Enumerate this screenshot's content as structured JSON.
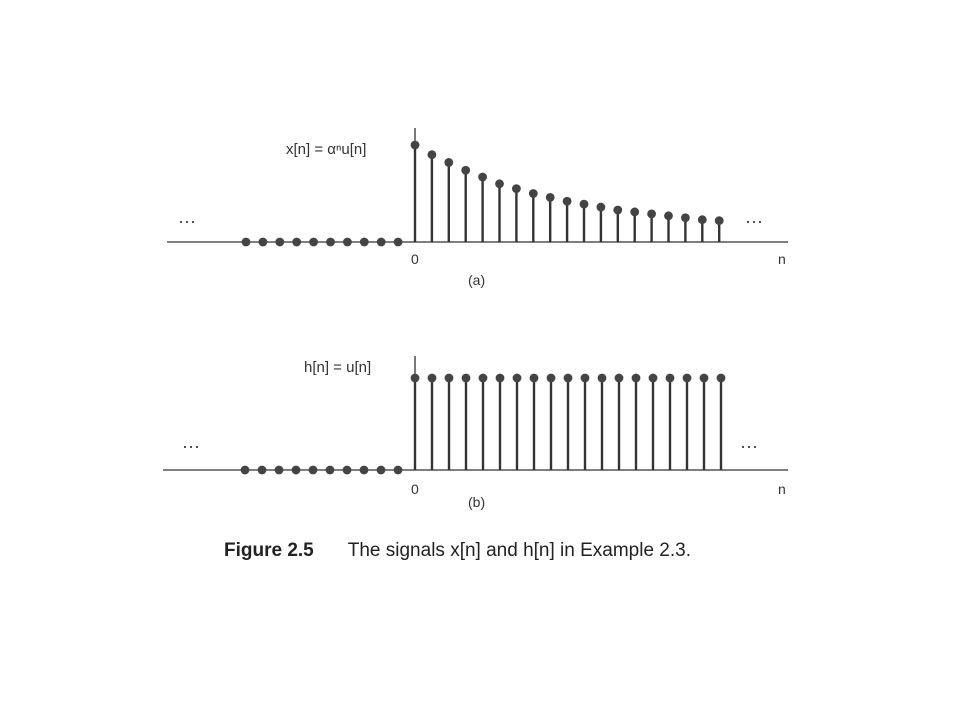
{
  "caption": {
    "label": "Figure 2.5",
    "text": "The signals x[n] and h[n] in Example 2.3."
  },
  "chart_data": [
    {
      "type": "stem",
      "panel_label": "(a)",
      "formula": "x[n] = αⁿu[n]",
      "xlabel": "n",
      "x_tick": "0",
      "continuation": "···",
      "x": [
        -10,
        -9,
        -8,
        -7,
        -6,
        -5,
        -4,
        -3,
        -2,
        -1,
        0,
        1,
        2,
        3,
        4,
        5,
        6,
        7,
        8,
        9,
        10,
        11,
        12,
        13,
        14,
        15,
        16,
        17,
        18
      ],
      "values": [
        0,
        0,
        0,
        0,
        0,
        0,
        0,
        0,
        0,
        0,
        1.0,
        0.9,
        0.82,
        0.74,
        0.67,
        0.6,
        0.55,
        0.5,
        0.46,
        0.42,
        0.39,
        0.36,
        0.33,
        0.31,
        0.29,
        0.27,
        0.25,
        0.23,
        0.22
      ],
      "ylim": [
        0,
        1
      ]
    },
    {
      "type": "stem",
      "panel_label": "(b)",
      "formula": "h[n] = u[n]",
      "xlabel": "n",
      "x_tick": "0",
      "continuation": "···",
      "x": [
        -10,
        -9,
        -8,
        -7,
        -6,
        -5,
        -4,
        -3,
        -2,
        -1,
        0,
        1,
        2,
        3,
        4,
        5,
        6,
        7,
        8,
        9,
        10,
        11,
        12,
        13,
        14,
        15,
        16,
        17,
        18
      ],
      "values": [
        0,
        0,
        0,
        0,
        0,
        0,
        0,
        0,
        0,
        0,
        1,
        1,
        1,
        1,
        1,
        1,
        1,
        1,
        1,
        1,
        1,
        1,
        1,
        1,
        1,
        1,
        1,
        1,
        1
      ],
      "ylim": [
        0,
        1
      ]
    }
  ]
}
